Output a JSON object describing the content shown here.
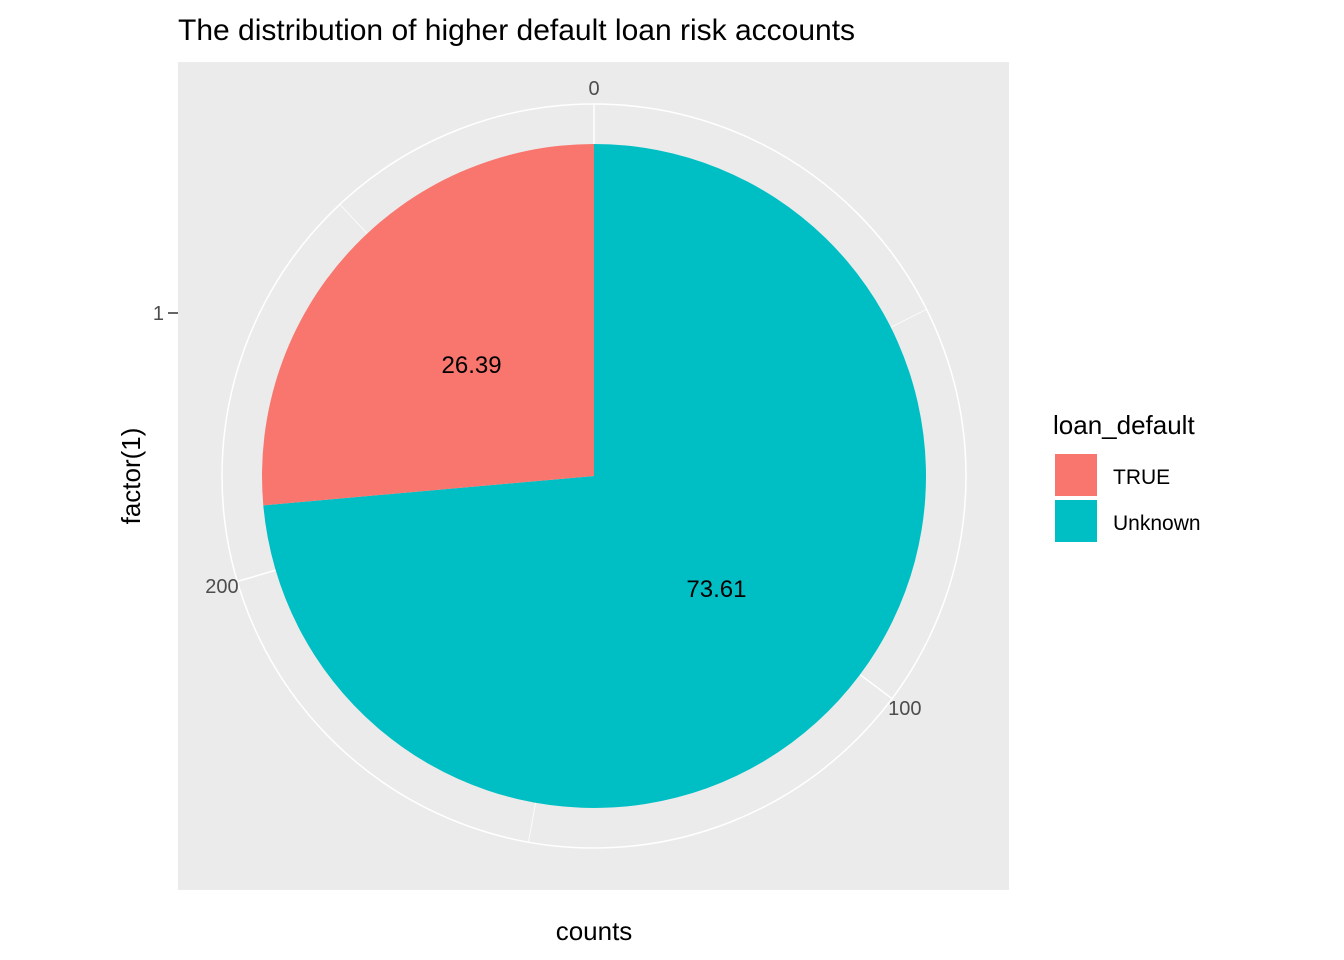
{
  "chart_data": {
    "type": "pie",
    "title": "The distribution of higher default loan risk accounts",
    "xlabel": "counts",
    "ylabel": "factor(1)",
    "y_ticks": [
      "1"
    ],
    "theta_ticks": [
      {
        "label": "0",
        "value": 0
      },
      {
        "label": "100",
        "value": 100
      },
      {
        "label": "200",
        "value": 200
      }
    ],
    "theta_total": 284,
    "slices": [
      {
        "name": "TRUE",
        "value": 26.39,
        "count": 75,
        "label": "26.39",
        "color": "#F8766D"
      },
      {
        "name": "Unknown",
        "value": 73.61,
        "count": 209,
        "label": "73.61",
        "color": "#00BFC4"
      }
    ],
    "legend": {
      "title": "loan_default",
      "position": "right",
      "items": [
        {
          "label": "TRUE",
          "color": "#F8766D"
        },
        {
          "label": "Unknown",
          "color": "#00BFC4"
        }
      ]
    },
    "panel_background": "#EBEBEB",
    "grid_color": "#FFFFFF",
    "grid": true
  }
}
